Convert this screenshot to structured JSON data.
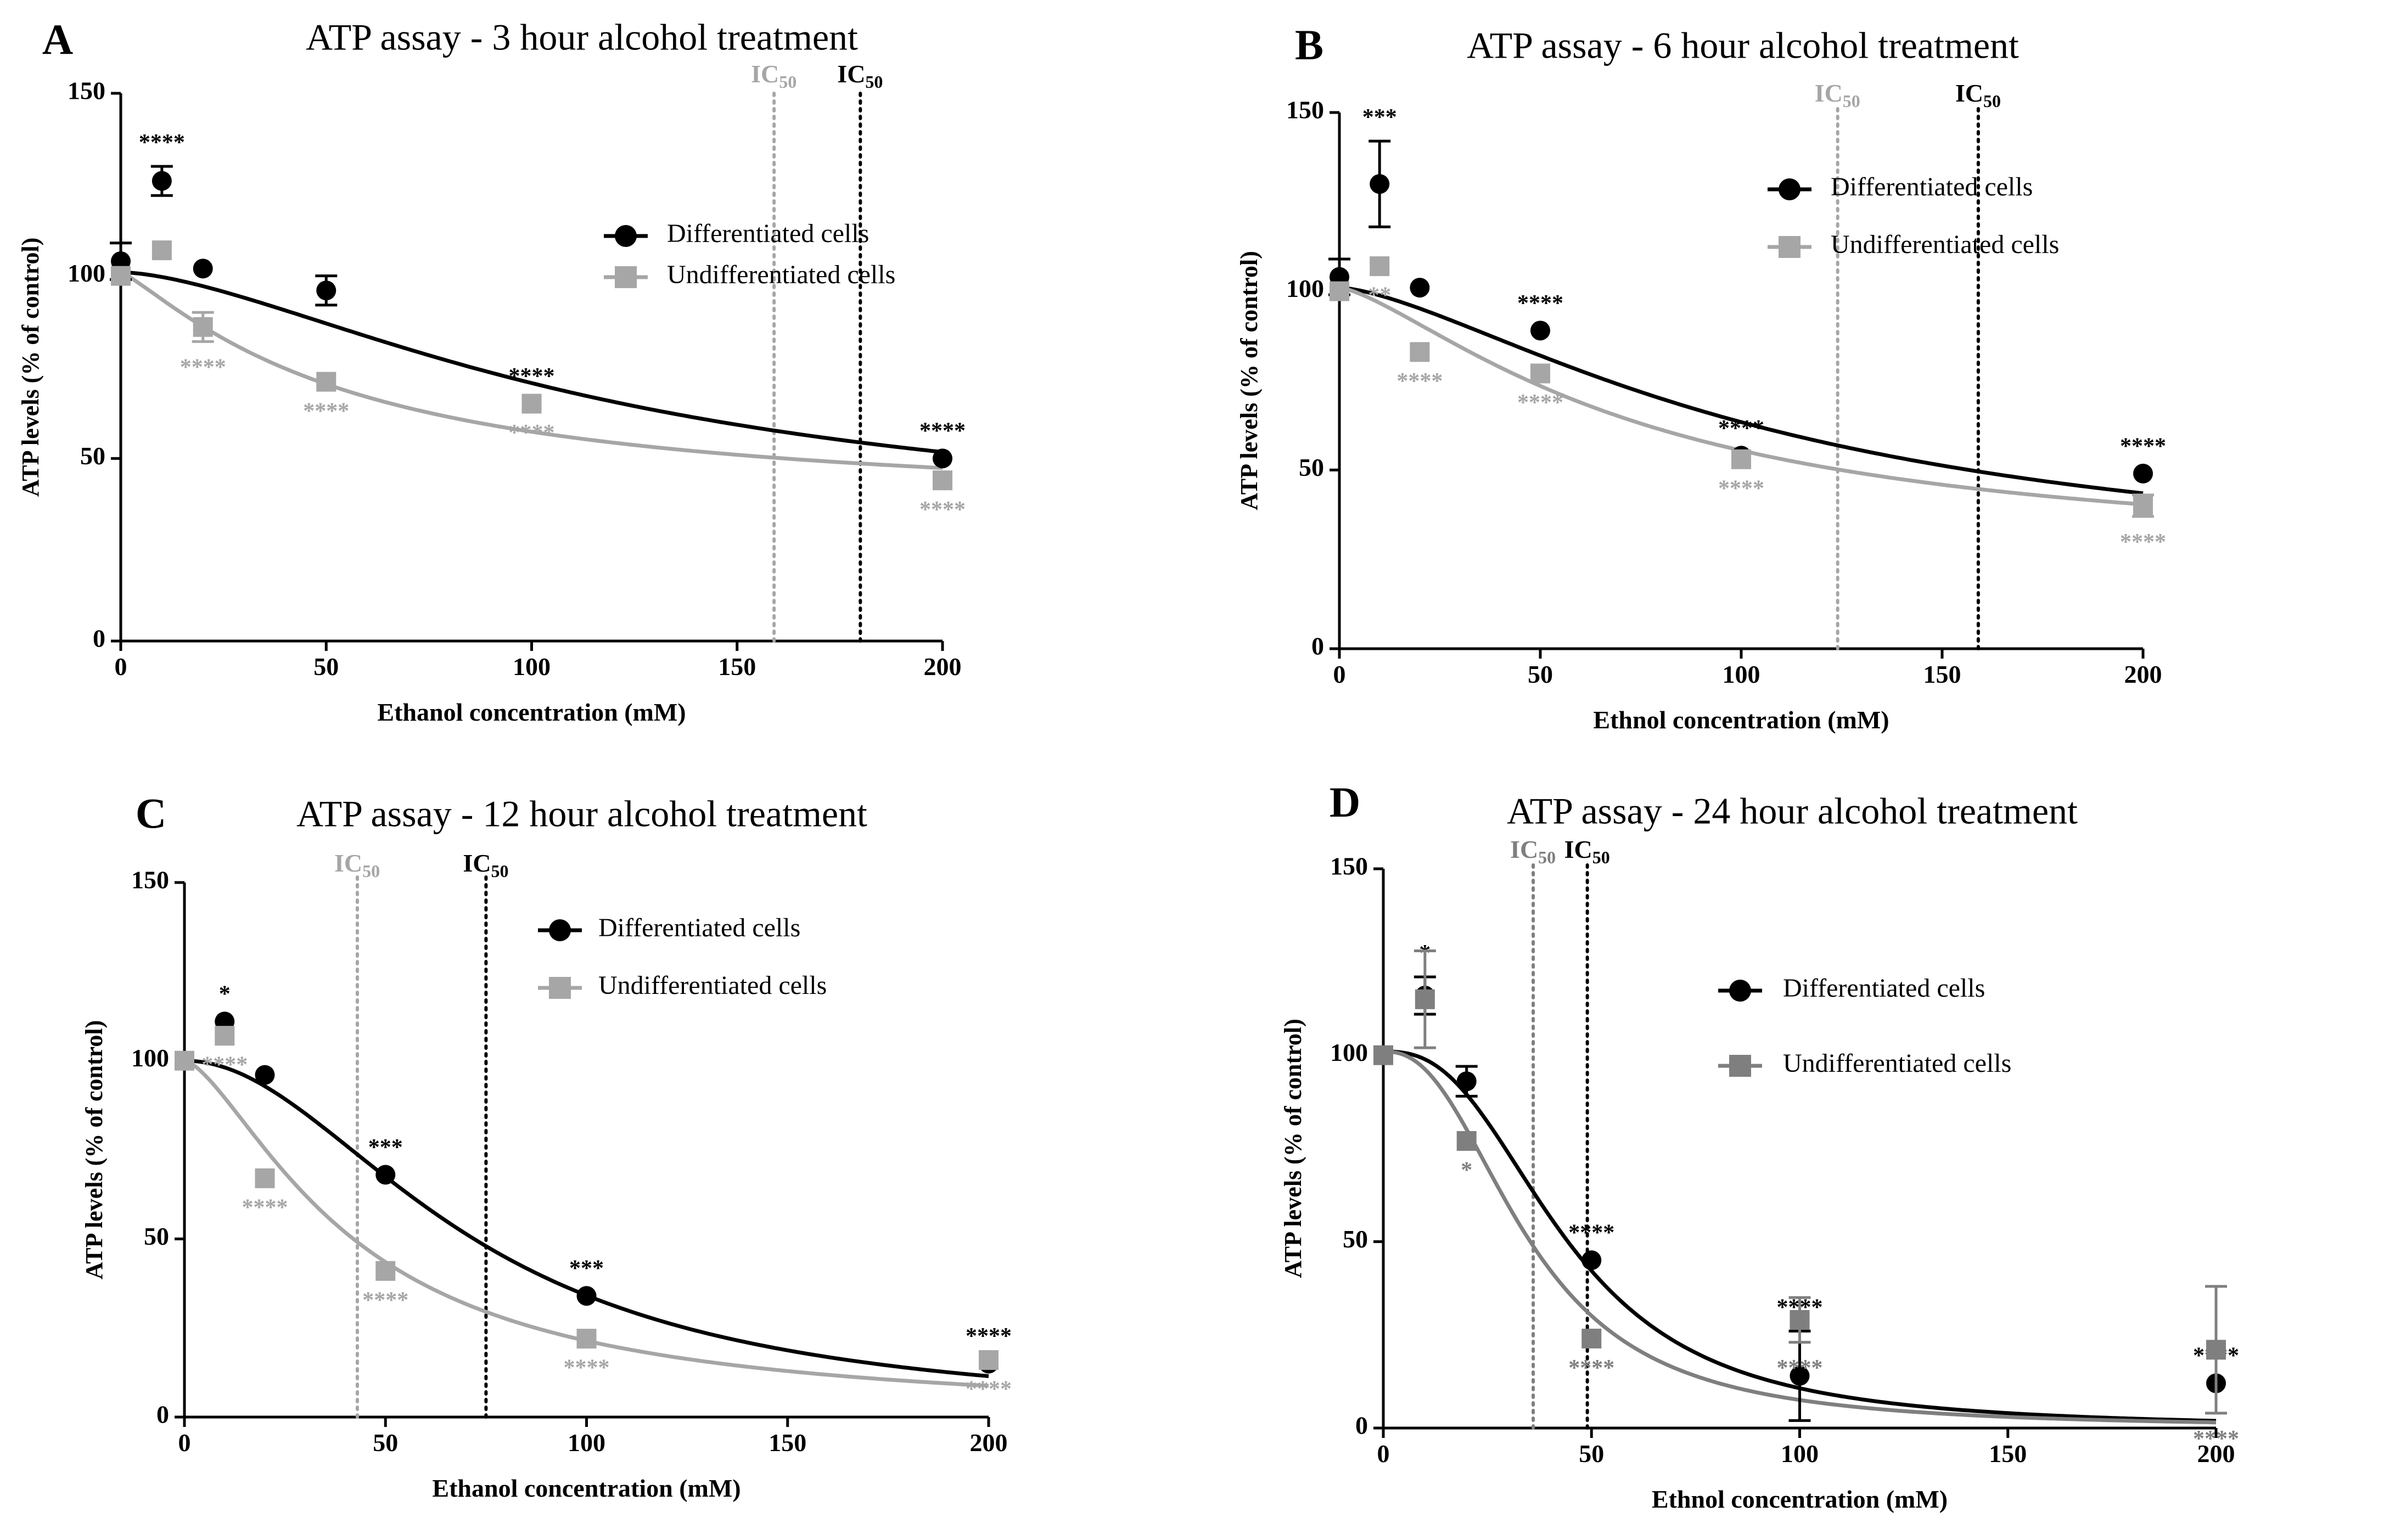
{
  "figure": {
    "colors": {
      "differentiated": "#000000",
      "undifferentiated": "#a6a6a6",
      "undifferentiated_d": "#7f7f7f"
    }
  },
  "chart_data": [
    {
      "panel_label": "A",
      "type": "scatter",
      "title": "ATP assay - 3 hour alcohol treatment",
      "xlabel": "Ethanol concentration (mM)",
      "ylabel": "ATP levels (% of control)",
      "xlim": [
        0,
        200
      ],
      "ylim": [
        0,
        150
      ],
      "xticks": [
        0,
        50,
        100,
        150,
        200
      ],
      "yticks": [
        0,
        50,
        100,
        150
      ],
      "legend_position": "right",
      "ic50_label": "IC",
      "ic50_sub": "50",
      "ic50_lines": [
        {
          "series": "Undifferentiated cells",
          "x": 159
        },
        {
          "series": "Differentiated cells",
          "x": 180
        }
      ],
      "series": [
        {
          "name": "Differentiated cells",
          "marker": "circle",
          "color": "#000000",
          "points": [
            {
              "x": 0,
              "y": 104,
              "err": 5,
              "sig": ""
            },
            {
              "x": 10,
              "y": 126,
              "err": 4,
              "sig": "****"
            },
            {
              "x": 20,
              "y": 102,
              "err": 1,
              "sig": ""
            },
            {
              "x": 50,
              "y": 96,
              "err": 4,
              "sig": ""
            },
            {
              "x": 100,
              "y": 65,
              "err": 1,
              "sig": "****"
            },
            {
              "x": 200,
              "y": 50,
              "err": 1,
              "sig": "****"
            }
          ],
          "fit": {
            "top": 101,
            "bottom": 30,
            "ec50": 120,
            "hill": 1.6
          }
        },
        {
          "name": "Undifferentiated cells",
          "marker": "square",
          "color": "#a6a6a6",
          "points": [
            {
              "x": 0,
              "y": 100,
              "err": 1,
              "sig": ""
            },
            {
              "x": 10,
              "y": 107,
              "err": 1,
              "sig": ""
            },
            {
              "x": 20,
              "y": 86,
              "err": 4,
              "sig": "****"
            },
            {
              "x": 50,
              "y": 71,
              "err": 1,
              "sig": "****"
            },
            {
              "x": 100,
              "y": 65,
              "err": 1,
              "sig": "****"
            },
            {
              "x": 200,
              "y": 44,
              "err": 1,
              "sig": "****"
            }
          ],
          "fit": {
            "top": 101,
            "bottom": 36,
            "ec50": 55,
            "hill": 1.2
          }
        }
      ]
    },
    {
      "panel_label": "B",
      "type": "scatter",
      "title": "ATP assay - 6 hour alcohol treatment",
      "xlabel": "Ethnol concentration (mM)",
      "ylabel": "ATP levels (% of control)",
      "xlim": [
        0,
        200
      ],
      "ylim": [
        0,
        150
      ],
      "xticks": [
        0,
        50,
        100,
        150,
        200
      ],
      "yticks": [
        0,
        50,
        100,
        150
      ],
      "legend_position": "right",
      "ic50_label": "IC",
      "ic50_sub": "50",
      "ic50_lines": [
        {
          "series": "Undifferentiated cells",
          "x": 124
        },
        {
          "series": "Differentiated cells",
          "x": 159
        }
      ],
      "series": [
        {
          "name": "Differentiated cells",
          "marker": "circle",
          "color": "#000000",
          "points": [
            {
              "x": 0,
              "y": 104,
              "err": 5,
              "sig": ""
            },
            {
              "x": 10,
              "y": 130,
              "err": 12,
              "sig": "***"
            },
            {
              "x": 20,
              "y": 101,
              "err": 1,
              "sig": ""
            },
            {
              "x": 50,
              "y": 89,
              "err": 1,
              "sig": "****"
            },
            {
              "x": 100,
              "y": 54,
              "err": 1,
              "sig": "****"
            },
            {
              "x": 200,
              "y": 49,
              "err": 1,
              "sig": "****"
            }
          ],
          "fit": {
            "top": 101,
            "bottom": 20,
            "ec50": 110,
            "hill": 1.5
          }
        },
        {
          "name": "Undifferentiated cells",
          "marker": "square",
          "color": "#a6a6a6",
          "points": [
            {
              "x": 0,
              "y": 100,
              "err": 1,
              "sig": ""
            },
            {
              "x": 10,
              "y": 107,
              "err": 1,
              "sig": "**"
            },
            {
              "x": 20,
              "y": 83,
              "err": 1,
              "sig": "****"
            },
            {
              "x": 50,
              "y": 77,
              "err": 1,
              "sig": "****"
            },
            {
              "x": 100,
              "y": 53,
              "err": 1,
              "sig": "****"
            },
            {
              "x": 200,
              "y": 40,
              "err": 3,
              "sig": "****"
            }
          ],
          "fit": {
            "top": 101,
            "bottom": 25,
            "ec50": 75,
            "hill": 1.4
          }
        }
      ]
    },
    {
      "panel_label": "C",
      "type": "scatter",
      "title": "ATP assay - 12 hour alcohol treatment",
      "xlabel": "Ethanol concentration (mM)",
      "ylabel": "ATP levels (% of control)",
      "xlim": [
        0,
        200
      ],
      "ylim": [
        0,
        150
      ],
      "xticks": [
        0,
        50,
        100,
        150,
        200
      ],
      "yticks": [
        0,
        50,
        100,
        150
      ],
      "legend_position": "top-right",
      "ic50_label": "IC",
      "ic50_sub": "50",
      "ic50_lines": [
        {
          "series": "Undifferentiated cells",
          "x": 43
        },
        {
          "series": "Differentiated cells",
          "x": 75
        }
      ],
      "series": [
        {
          "name": "Differentiated cells",
          "marker": "circle",
          "color": "#000000",
          "points": [
            {
              "x": 0,
              "y": 100,
              "err": 1,
              "sig": ""
            },
            {
              "x": 10,
              "y": 111,
              "err": 1,
              "sig": "*"
            },
            {
              "x": 20,
              "y": 96,
              "err": 1,
              "sig": ""
            },
            {
              "x": 50,
              "y": 68,
              "err": 1,
              "sig": "***"
            },
            {
              "x": 100,
              "y": 34,
              "err": 1,
              "sig": "***"
            },
            {
              "x": 200,
              "y": 15,
              "err": 1,
              "sig": "****"
            }
          ],
          "fit": {
            "top": 100,
            "bottom": 0,
            "ec50": 72,
            "hill": 2.0
          }
        },
        {
          "name": "Undifferentiated cells",
          "marker": "square",
          "color": "#a6a6a6",
          "points": [
            {
              "x": 0,
              "y": 100,
              "err": 1,
              "sig": ""
            },
            {
              "x": 10,
              "y": 107,
              "err": 1,
              "sig": "****"
            },
            {
              "x": 20,
              "y": 67,
              "err": 1,
              "sig": "****"
            },
            {
              "x": 50,
              "y": 41,
              "err": 1,
              "sig": "****"
            },
            {
              "x": 100,
              "y": 22,
              "err": 1,
              "sig": "****"
            },
            {
              "x": 200,
              "y": 16,
              "err": 1,
              "sig": "****"
            }
          ],
          "fit": {
            "top": 100,
            "bottom": 0,
            "ec50": 42,
            "hill": 1.5
          }
        }
      ]
    },
    {
      "panel_label": "D",
      "type": "scatter",
      "title": "ATP assay - 24 hour alcohol treatment",
      "xlabel": "Ethnol concentration (mM)",
      "ylabel": "ATP levels (% of control)",
      "xlim": [
        0,
        200
      ],
      "ylim": [
        0,
        150
      ],
      "xticks": [
        0,
        50,
        100,
        150,
        200
      ],
      "yticks": [
        0,
        50,
        100,
        150
      ],
      "legend_position": "right",
      "ic50_label": "IC",
      "ic50_sub": "50",
      "ic50_lines": [
        {
          "series": "Undifferentiated cells",
          "x": 36
        },
        {
          "series": "Differentiated cells",
          "x": 49
        }
      ],
      "series": [
        {
          "name": "Differentiated cells",
          "marker": "circle",
          "color": "#000000",
          "points": [
            {
              "x": 0,
              "y": 100,
              "err": 1,
              "sig": ""
            },
            {
              "x": 10,
              "y": 116,
              "err": 5,
              "sig": "*"
            },
            {
              "x": 20,
              "y": 93,
              "err": 4,
              "sig": ""
            },
            {
              "x": 50,
              "y": 45,
              "err": 1,
              "sig": "****"
            },
            {
              "x": 100,
              "y": 14,
              "err": 12,
              "sig": "****"
            },
            {
              "x": 200,
              "y": 12,
              "err": 1,
              "sig": "****"
            }
          ],
          "fit": {
            "top": 101,
            "bottom": 0,
            "ec50": 44,
            "hill": 2.6
          }
        },
        {
          "name": "Undifferentiated cells",
          "marker": "square",
          "color": "#7f7f7f",
          "points": [
            {
              "x": 0,
              "y": 100,
              "err": 1,
              "sig": ""
            },
            {
              "x": 10,
              "y": 115,
              "err": 13,
              "sig": ""
            },
            {
              "x": 20,
              "y": 77,
              "err": 1,
              "sig": "*"
            },
            {
              "x": 50,
              "y": 24,
              "err": 1,
              "sig": "****"
            },
            {
              "x": 100,
              "y": 29,
              "err": 6,
              "sig": "****"
            },
            {
              "x": 200,
              "y": 21,
              "err": 17,
              "sig": "****"
            }
          ],
          "fit": {
            "top": 101,
            "bottom": 0,
            "ec50": 35,
            "hill": 2.4
          }
        }
      ]
    }
  ]
}
